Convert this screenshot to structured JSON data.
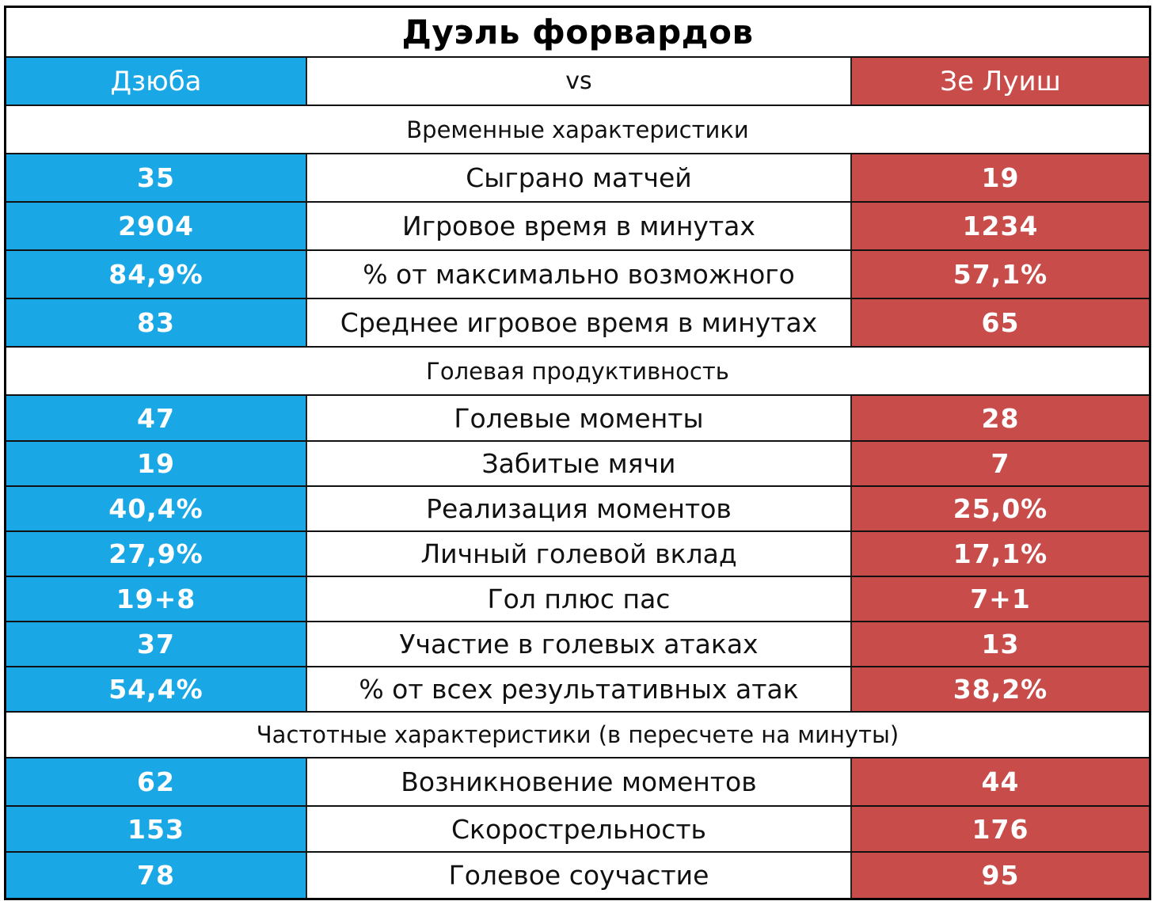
{
  "title": "Дуэль форвардов",
  "header": {
    "left": "Дзюба",
    "middle": "vs",
    "right": "Зе Луиш"
  },
  "colors": {
    "left": "#1aa7e6",
    "right": "#c84c4a"
  },
  "sections": [
    {
      "title": "Временные характеристики",
      "rows": [
        {
          "left": "35",
          "label": "Сыграно матчей",
          "right": "19"
        },
        {
          "left": "2904",
          "label": "Игровое время в минутах",
          "right": "1234"
        },
        {
          "left": "84,9%",
          "label": "% от максимально возможного",
          "right": "57,1%"
        },
        {
          "left": "83",
          "label": "Среднее игровое время в минутах",
          "right": "65"
        }
      ]
    },
    {
      "title": "Голевая продуктивность",
      "rows": [
        {
          "left": "47",
          "label": "Голевые моменты",
          "right": "28"
        },
        {
          "left": "19",
          "label": "Забитые мячи",
          "right": "7"
        },
        {
          "left": "40,4%",
          "label": "Реализация моментов",
          "right": "25,0%"
        },
        {
          "left": "27,9%",
          "label": "Личный голевой вклад",
          "right": "17,1%"
        },
        {
          "left": "19+8",
          "label": "Гол плюс пас",
          "right": "7+1"
        },
        {
          "left": "37",
          "label": "Участие в голевых атаках",
          "right": "13"
        },
        {
          "left": "54,4%",
          "label": "% от всех результативных атак",
          "right": "38,2%"
        }
      ]
    },
    {
      "title": "Частотные характеристики (в пересчете на минуты)",
      "rows": [
        {
          "left": "62",
          "label": "Возникновение моментов",
          "right": "44"
        },
        {
          "left": "153",
          "label": "Скорострельность",
          "right": "176"
        },
        {
          "left": "78",
          "label": "Голевое соучастие",
          "right": "95"
        }
      ]
    }
  ]
}
